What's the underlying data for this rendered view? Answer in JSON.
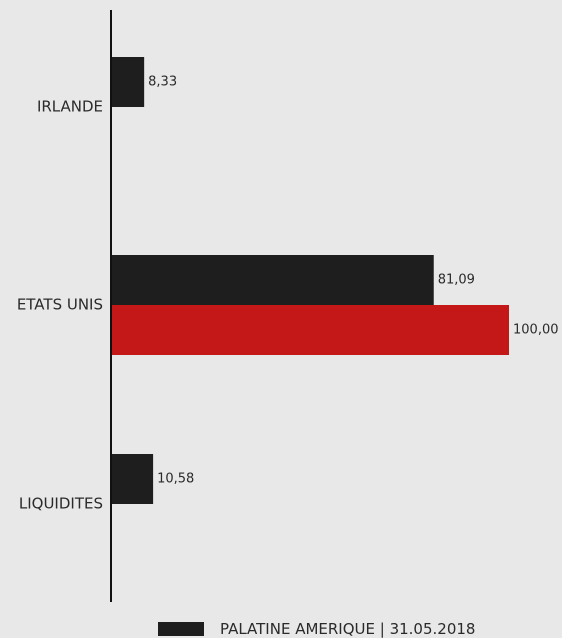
{
  "chart_data": {
    "type": "bar",
    "orientation": "horizontal",
    "categories": [
      "IRLANDE",
      "ETATS UNIS",
      "LIQUIDITES"
    ],
    "series": [
      {
        "name": "PALATINE AMERIQUE | 31.05.2018",
        "values": [
          8.33,
          81.09,
          10.58
        ],
        "value_labels": [
          "8,33",
          "81,09",
          "10,58"
        ],
        "color": "#1e1e1e"
      },
      {
        "values": [
          null,
          100.0,
          null
        ],
        "value_labels": [
          "",
          "100,00",
          ""
        ],
        "color": "#c41818"
      }
    ],
    "xlim": [
      0,
      100
    ],
    "grid": false,
    "legend_position": "bottom-center"
  },
  "colors": {
    "background": "#e8e8e8",
    "axis": "#111111",
    "text": "#2a2a2a"
  }
}
